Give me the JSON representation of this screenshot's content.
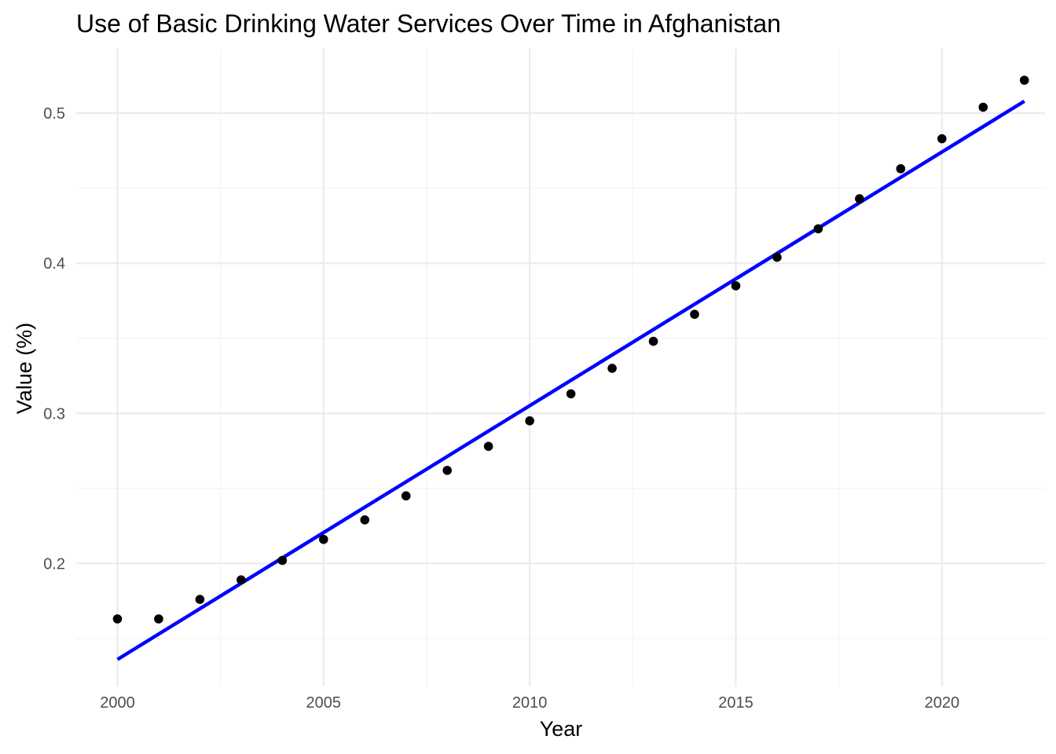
{
  "chart_data": {
    "type": "scatter",
    "title": "Use of Basic Drinking Water Services Over Time in Afghanistan",
    "xlabel": "Year",
    "ylabel": "Value (%)",
    "xlim": [
      1999.0,
      2022.5
    ],
    "ylim": [
      0.118,
      0.543
    ],
    "x_ticks": [
      2000,
      2005,
      2010,
      2015,
      2020
    ],
    "x_tick_labels": [
      "2000",
      "2005",
      "2010",
      "2015",
      "2020"
    ],
    "y_ticks": [
      0.2,
      0.3,
      0.4,
      0.5
    ],
    "y_tick_labels": [
      "0.2",
      "0.3",
      "0.4",
      "0.5"
    ],
    "grid": true,
    "legend": "none",
    "series": [
      {
        "type": "scatter",
        "color": "#000000",
        "x": [
          2000,
          2001,
          2002,
          2003,
          2004,
          2005,
          2006,
          2007,
          2008,
          2009,
          2010,
          2011,
          2012,
          2013,
          2014,
          2015,
          2016,
          2017,
          2018,
          2019,
          2020,
          2021,
          2022
        ],
        "y": [
          0.163,
          0.163,
          0.176,
          0.189,
          0.202,
          0.216,
          0.229,
          0.245,
          0.262,
          0.278,
          0.295,
          0.313,
          0.33,
          0.348,
          0.366,
          0.385,
          0.404,
          0.423,
          0.443,
          0.463,
          0.483,
          0.504,
          0.522
        ]
      },
      {
        "type": "line",
        "color": "#0000ff",
        "x": [
          2000,
          2022
        ],
        "y": [
          0.136,
          0.508
        ]
      }
    ]
  }
}
